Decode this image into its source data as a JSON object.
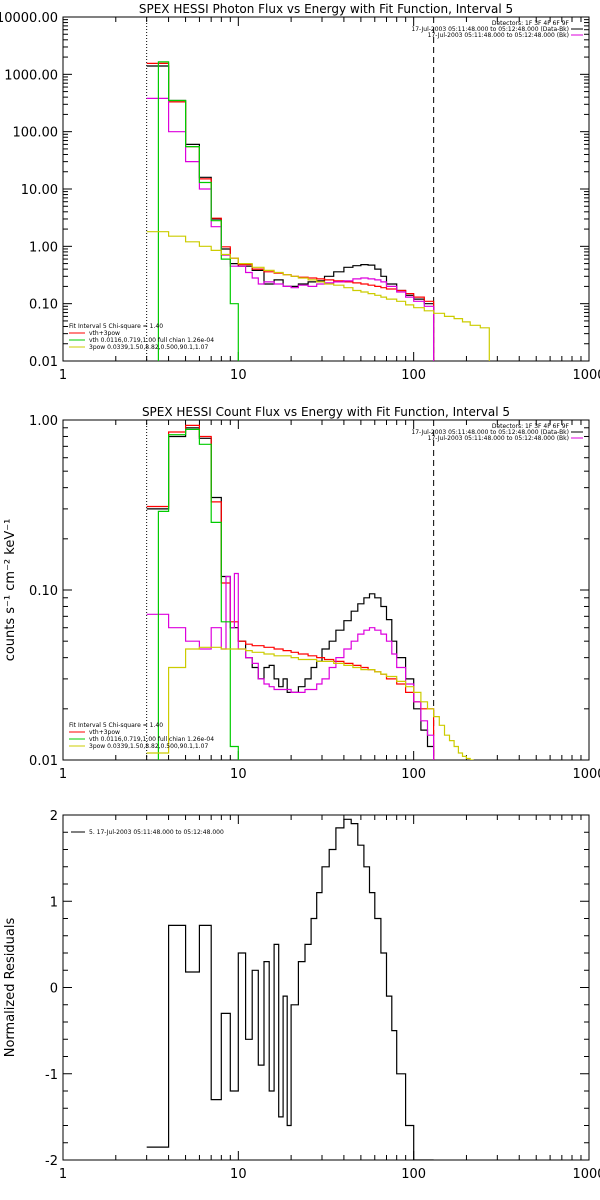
{
  "chart_data": [
    {
      "type": "line",
      "title": "SPEX HESSI Photon Flux vs Energy with Fit Function, Interval 5",
      "xlabel": "",
      "ylabel": "",
      "xscale": "log",
      "yscale": "log",
      "xlim": [
        1,
        1000
      ],
      "ylim": [
        0.01,
        10000
      ],
      "x_ticks": [
        "1",
        "10",
        "100",
        "1000"
      ],
      "y_ticks": [
        "0.01",
        "0.10",
        "1.00",
        "10.00",
        "100.00",
        "1000.00",
        "10000.00"
      ],
      "header": [
        "Detectors: 1F 3F 4F 6F 9F",
        "17-Jul-2003 05:11:48.000 to 05:12:48.000 (Data-Bk)",
        "17-Jul-2003 05:11:48.000 to 05:12:48.000 (Bk)"
      ],
      "legend": [
        {
          "label": "Fit Interval 5   Chi-square = 1.40",
          "color": "#000000"
        },
        {
          "label": "vth+3pow",
          "color": "#ff0000"
        },
        {
          "label": "vth 0.0116,0.719,1.00  full chian 1.26e-04",
          "color": "#00cc00"
        },
        {
          "label": "3pow 0.0339,1.50,8.82,0.500,90.1,1.07",
          "color": "#cccc00"
        }
      ],
      "vlines": [
        {
          "x": 3,
          "style": "dotted"
        },
        {
          "x": 130,
          "style": "dashed"
        }
      ],
      "series": [
        {
          "name": "Data-Bk",
          "color": "#000000",
          "step": true,
          "edges": [
            3,
            3.5,
            4,
            5,
            6,
            7,
            8,
            9,
            10,
            12,
            14,
            16,
            18,
            20,
            22,
            25,
            28,
            31,
            35,
            40,
            45,
            50,
            55,
            60,
            65,
            70,
            80,
            90,
            100,
            115,
            130
          ],
          "values": [
            1400,
            1400,
            350,
            60,
            16,
            3,
            0.9,
            0.5,
            0.45,
            0.38,
            0.22,
            0.26,
            0.2,
            0.2,
            0.22,
            0.24,
            0.25,
            0.3,
            0.36,
            0.43,
            0.46,
            0.48,
            0.47,
            0.4,
            0.3,
            0.22,
            0.17,
            0.14,
            0.12,
            0.1,
            0.009
          ]
        },
        {
          "name": "vth+3pow",
          "color": "#ff0000",
          "step": true,
          "edges": [
            3,
            3.5,
            4,
            5,
            6,
            7,
            8,
            9,
            10,
            12,
            14,
            16,
            18,
            20,
            22,
            25,
            28,
            31,
            35,
            40,
            45,
            50,
            55,
            60,
            65,
            70,
            80,
            90,
            100,
            115,
            130
          ],
          "values": [
            1550,
            1550,
            330,
            55,
            15,
            3.1,
            0.98,
            0.62,
            0.48,
            0.4,
            0.36,
            0.34,
            0.32,
            0.3,
            0.29,
            0.28,
            0.27,
            0.26,
            0.25,
            0.24,
            0.23,
            0.22,
            0.21,
            0.2,
            0.19,
            0.18,
            0.17,
            0.15,
            0.13,
            0.11,
            0.009
          ]
        },
        {
          "name": "Bk",
          "color": "#dd00dd",
          "step": true,
          "edges": [
            3,
            3.5,
            4,
            5,
            6,
            7,
            8,
            9,
            10,
            11,
            12,
            13,
            14,
            16,
            18,
            20,
            22,
            25,
            28,
            31,
            35,
            40,
            45,
            50,
            55,
            60,
            65,
            70,
            80,
            90,
            100,
            115,
            130
          ],
          "values": [
            380,
            380,
            100,
            30,
            10,
            2.2,
            0.7,
            0.45,
            0.45,
            0.35,
            0.28,
            0.22,
            0.24,
            0.22,
            0.2,
            0.19,
            0.21,
            0.2,
            0.22,
            0.23,
            0.24,
            0.25,
            0.27,
            0.28,
            0.27,
            0.26,
            0.24,
            0.2,
            0.16,
            0.13,
            0.11,
            0.09,
            0.009
          ]
        },
        {
          "name": "vth",
          "color": "#00cc00",
          "step": true,
          "edges": [
            3,
            3.5,
            4,
            5,
            6,
            7,
            8,
            9,
            10,
            10.5
          ],
          "values": [
            0.005,
            1650,
            350,
            55,
            13,
            2.8,
            0.6,
            0.1,
            0.005
          ]
        },
        {
          "name": "3pow",
          "color": "#cccc00",
          "step": true,
          "edges": [
            3,
            4,
            5,
            6,
            7,
            8,
            9,
            10,
            12,
            14,
            16,
            18,
            20,
            22,
            25,
            28,
            31,
            35,
            40,
            45,
            50,
            55,
            60,
            65,
            70,
            80,
            90,
            100,
            115,
            130,
            150,
            170,
            190,
            210,
            240,
            270,
            290
          ],
          "values": [
            1.8,
            1.5,
            1.2,
            1.0,
            0.85,
            0.72,
            0.62,
            0.5,
            0.43,
            0.38,
            0.35,
            0.32,
            0.3,
            0.28,
            0.26,
            0.24,
            0.22,
            0.21,
            0.19,
            0.17,
            0.16,
            0.15,
            0.14,
            0.13,
            0.12,
            0.11,
            0.095,
            0.085,
            0.075,
            0.068,
            0.06,
            0.055,
            0.048,
            0.042,
            0.038,
            0.002
          ]
        }
      ]
    },
    {
      "type": "line",
      "title": "SPEX HESSI Count Flux vs Energy with Fit Function, Interval 5",
      "xlabel": "",
      "ylabel": "counts s⁻¹ cm⁻² keV⁻¹",
      "xscale": "log",
      "yscale": "log",
      "xlim": [
        1,
        1000
      ],
      "ylim": [
        0.01,
        1
      ],
      "x_ticks": [
        "1",
        "10",
        "100",
        "1000"
      ],
      "y_ticks": [
        "0.01",
        "0.10",
        "1.00"
      ],
      "header": [
        "Detectors: 1F 3F 4F 6F 9F",
        "17-Jul-2003 05:11:48.000 to 05:12:48.000 (Data-Bk)",
        "17-Jul-2003 05:11:48.000 to 05:12:48.000 (Bk)"
      ],
      "legend": [
        {
          "label": "Fit Interval 5   Chi-square = 1.40",
          "color": "#000000"
        },
        {
          "label": "vth+3pow",
          "color": "#ff0000"
        },
        {
          "label": "vth 0.0116,0.719,1.00  full chian 1.26e-04",
          "color": "#00cc00"
        },
        {
          "label": "3pow 0.0339,1.50,8.82,0.500,90.1,1.07",
          "color": "#cccc00"
        }
      ],
      "vlines": [
        {
          "x": 3,
          "style": "dotted"
        },
        {
          "x": 130,
          "style": "dashed"
        }
      ],
      "series": [
        {
          "name": "Data-Bk",
          "color": "#000000",
          "step": true,
          "edges": [
            3,
            3.5,
            4,
            5,
            6,
            7,
            8,
            9,
            10,
            11,
            12,
            13,
            14,
            15,
            16,
            17,
            18,
            19,
            20,
            22,
            24,
            26,
            28,
            30,
            33,
            36,
            40,
            44,
            48,
            52,
            56,
            60,
            65,
            70,
            75,
            80,
            90,
            100,
            110,
            120,
            130
          ],
          "values": [
            0.3,
            0.3,
            0.8,
            0.9,
            0.78,
            0.35,
            0.12,
            0.06,
            0.05,
            0.04,
            0.035,
            0.03,
            0.035,
            0.036,
            0.03,
            0.027,
            0.03,
            0.025,
            0.025,
            0.027,
            0.03,
            0.035,
            0.038,
            0.045,
            0.05,
            0.058,
            0.066,
            0.075,
            0.083,
            0.09,
            0.095,
            0.09,
            0.08,
            0.067,
            0.05,
            0.04,
            0.03,
            0.02,
            0.015,
            0.012,
            0.01
          ]
        },
        {
          "name": "vth+3pow",
          "color": "#ff0000",
          "step": true,
          "edges": [
            3,
            3.5,
            4,
            5,
            6,
            7,
            8,
            9,
            10,
            11,
            12,
            14,
            16,
            18,
            20,
            22,
            25,
            28,
            31,
            35,
            40,
            45,
            50,
            55,
            60,
            65,
            70,
            80,
            90,
            100,
            110,
            130
          ],
          "values": [
            0.31,
            0.31,
            0.85,
            0.93,
            0.8,
            0.33,
            0.11,
            0.065,
            0.05,
            0.048,
            0.047,
            0.046,
            0.045,
            0.044,
            0.043,
            0.042,
            0.041,
            0.04,
            0.039,
            0.038,
            0.037,
            0.036,
            0.035,
            0.034,
            0.033,
            0.032,
            0.03,
            0.028,
            0.025,
            0.022,
            0.02,
            0.01
          ]
        },
        {
          "name": "Bk",
          "color": "#dd00dd",
          "step": true,
          "edges": [
            3,
            3.5,
            4,
            5,
            6,
            7,
            8,
            8.5,
            9,
            9.5,
            10,
            11,
            12,
            13,
            14,
            15,
            16,
            18,
            20,
            22,
            24,
            26,
            28,
            30,
            33,
            36,
            40,
            44,
            48,
            52,
            56,
            60,
            65,
            70,
            75,
            80,
            90,
            100,
            110,
            120,
            130
          ],
          "values": [
            0.072,
            0.072,
            0.06,
            0.05,
            0.045,
            0.06,
            0.045,
            0.12,
            0.06,
            0.125,
            0.045,
            0.04,
            0.037,
            0.03,
            0.028,
            0.027,
            0.026,
            0.026,
            0.025,
            0.025,
            0.026,
            0.026,
            0.028,
            0.03,
            0.035,
            0.04,
            0.045,
            0.05,
            0.055,
            0.058,
            0.06,
            0.058,
            0.055,
            0.05,
            0.042,
            0.035,
            0.028,
            0.022,
            0.017,
            0.014,
            0.01
          ]
        },
        {
          "name": "vth",
          "color": "#00cc00",
          "step": true,
          "edges": [
            3,
            3.5,
            4,
            5,
            6,
            7,
            8,
            9,
            10,
            10.5
          ],
          "values": [
            0.002,
            0.29,
            0.82,
            0.88,
            0.72,
            0.25,
            0.065,
            0.012,
            0.002
          ]
        },
        {
          "name": "3pow",
          "color": "#cccc00",
          "step": true,
          "edges": [
            3,
            4,
            5,
            6,
            7,
            8,
            9,
            10,
            11,
            12,
            14,
            16,
            18,
            20,
            22,
            25,
            28,
            31,
            35,
            40,
            45,
            50,
            55,
            60,
            65,
            70,
            80,
            90,
            100,
            110,
            120,
            130,
            140,
            150,
            160,
            170,
            180,
            190,
            200,
            210,
            220
          ],
          "values": [
            0.011,
            0.035,
            0.045,
            0.046,
            0.046,
            0.045,
            0.045,
            0.045,
            0.044,
            0.043,
            0.042,
            0.041,
            0.041,
            0.04,
            0.039,
            0.039,
            0.038,
            0.038,
            0.037,
            0.036,
            0.035,
            0.034,
            0.034,
            0.033,
            0.032,
            0.031,
            0.029,
            0.027,
            0.025,
            0.022,
            0.02,
            0.018,
            0.016,
            0.014,
            0.013,
            0.012,
            0.011,
            0.0105,
            0.0102,
            0.01
          ]
        }
      ]
    },
    {
      "type": "line",
      "title": "",
      "xlabel": "",
      "ylabel": "Normalized Residuals",
      "xscale": "log",
      "yscale": "linear",
      "xlim": [
        1,
        1000
      ],
      "ylim": [
        -2,
        2
      ],
      "x_ticks": [
        "1",
        "10",
        "100",
        "1000"
      ],
      "y_ticks": [
        "-2",
        "-1",
        "0",
        "1",
        "2"
      ],
      "legend": [
        {
          "label": "5. 17-Jul-2003 05:11:48.000 to 05:12:48.000",
          "color": "#000000"
        }
      ],
      "series": [
        {
          "name": "residuals",
          "color": "#000000",
          "step": true,
          "edges": [
            3,
            3.5,
            4,
            5,
            6,
            7,
            8,
            9,
            10,
            11,
            12,
            13,
            14,
            15,
            16,
            17,
            18,
            19,
            20,
            22,
            24,
            26,
            28,
            30,
            33,
            36,
            40,
            44,
            48,
            52,
            56,
            60,
            65,
            70,
            75,
            80,
            90,
            100,
            110,
            120,
            130
          ],
          "values": [
            -1.85,
            -1.85,
            0.72,
            0.18,
            0.72,
            -1.3,
            -0.3,
            -1.2,
            0.4,
            -0.6,
            0.2,
            -0.9,
            0.3,
            -1.2,
            0.5,
            -1.5,
            -0.1,
            -1.6,
            -0.2,
            0.3,
            0.5,
            0.8,
            1.1,
            1.4,
            1.6,
            1.85,
            1.95,
            1.9,
            1.65,
            1.4,
            1.1,
            0.8,
            0.4,
            -0.1,
            -0.5,
            -1.0,
            -1.6,
            -2.0,
            -2.0,
            -2.0,
            -2.0
          ]
        }
      ]
    }
  ]
}
